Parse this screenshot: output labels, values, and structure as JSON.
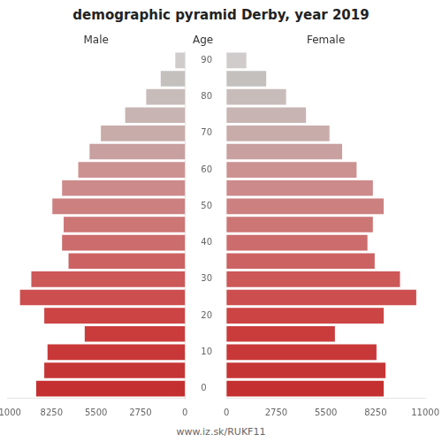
{
  "chart_data": {
    "type": "bar",
    "orientation": "horizontal",
    "title": "demographic pyramid Derby, year 2019",
    "ylabel": "Age",
    "annotations": [
      "www.iz.sk/RUKF11"
    ],
    "categories": [
      "0",
      null,
      "10",
      null,
      "20",
      null,
      "30",
      null,
      "40",
      null,
      "50",
      null,
      "60",
      null,
      "70",
      null,
      "80",
      null,
      "90"
    ],
    "series": [
      {
        "name": "Male",
        "values": [
          9200,
          8700,
          8500,
          6200,
          8700,
          10200,
          9500,
          7200,
          7600,
          7500,
          8200,
          7600,
          6600,
          5900,
          5200,
          3700,
          2400,
          1500,
          600
        ],
        "colors": [
          "#c43030",
          "#c63535",
          "#c83838",
          "#ca3c3c",
          "#cc4444",
          "#cc4e4e",
          "#cc5858",
          "#cc6262",
          "#cc6c6c",
          "#cc7676",
          "#cc8080",
          "#cc8a8a",
          "#cc9292",
          "#c8a0a0",
          "#c8acaa",
          "#c8b4b2",
          "#c8bcba",
          "#c4c0be",
          "#d0cccc"
        ]
      },
      {
        "name": "Female",
        "values": [
          8700,
          8800,
          8300,
          6000,
          8700,
          10500,
          9600,
          8200,
          7800,
          8100,
          8700,
          8100,
          7200,
          6400,
          5700,
          4400,
          3300,
          2200,
          1100
        ],
        "colors": [
          "#c43030",
          "#c63535",
          "#c83838",
          "#ca3c3c",
          "#cc4444",
          "#cc4e4e",
          "#cc5858",
          "#cc6262",
          "#cc6c6c",
          "#cc7676",
          "#cc8080",
          "#cc8a8a",
          "#cc9292",
          "#c8a0a0",
          "#c8acaa",
          "#c8b4b2",
          "#c8bcba",
          "#c4c0be",
          "#d0cccc"
        ]
      }
    ],
    "xlim": [
      0,
      11000
    ],
    "xticks": [
      0,
      2750,
      5500,
      8250,
      11000
    ],
    "grid": false
  }
}
